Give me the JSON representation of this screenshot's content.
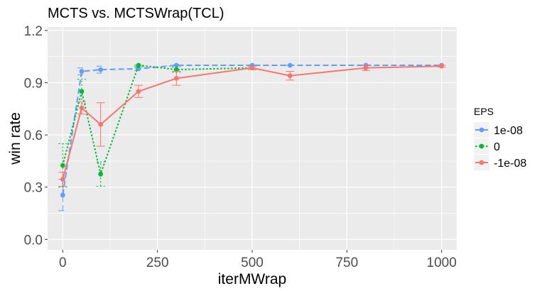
{
  "chart_data": {
    "type": "line",
    "title": "MCTS vs. MCTSWrap(TCL)",
    "xlabel": "iterMWrap",
    "ylabel": "win rate",
    "xlim": [
      -40,
      1040
    ],
    "ylim": [
      -0.06,
      1.22
    ],
    "x_ticks": [
      0,
      250,
      500,
      750,
      1000
    ],
    "y_ticks": [
      0.0,
      0.3,
      0.6,
      0.9,
      1.2
    ],
    "y_tick_labels": [
      "0.0",
      "0.3",
      "0.6",
      "0.9",
      "1.2"
    ],
    "grid": true,
    "legend": {
      "title": "EPS",
      "position": "right"
    },
    "series": [
      {
        "name": "1e-08",
        "color": "#619CFF",
        "dash": "long-dash",
        "x": [
          0,
          50,
          100,
          200,
          300,
          500,
          600,
          800,
          1000
        ],
        "y": [
          0.255,
          0.965,
          0.975,
          0.98,
          1.0,
          1.0,
          1.0,
          1.0,
          1.0
        ],
        "err_low": [
          0.165,
          0.945,
          0.955,
          0.97,
          1.0,
          1.0,
          1.0,
          1.0,
          1.0
        ],
        "err_high": [
          0.345,
          0.985,
          0.995,
          0.99,
          1.0,
          1.0,
          1.0,
          1.0,
          1.0
        ]
      },
      {
        "name": "0",
        "color": "#00BA38",
        "dash": "dotted",
        "x": [
          0,
          50,
          100,
          200,
          300,
          500
        ],
        "y": [
          0.425,
          0.85,
          0.375,
          1.0,
          0.975,
          0.985
        ],
        "err_low": [
          0.3,
          0.78,
          0.305,
          0.99,
          0.96,
          0.975
        ],
        "err_high": [
          0.55,
          0.92,
          0.445,
          1.0,
          0.99,
          0.995
        ]
      },
      {
        "name": "-1e-08",
        "color": "#F8766D",
        "dash": "solid",
        "x": [
          0,
          50,
          100,
          200,
          300,
          500,
          600,
          800,
          1000
        ],
        "y": [
          0.345,
          0.755,
          0.66,
          0.85,
          0.925,
          0.985,
          0.94,
          0.985,
          0.995
        ],
        "err_low": [
          0.305,
          0.72,
          0.535,
          0.815,
          0.885,
          0.975,
          0.915,
          0.97,
          0.99
        ],
        "err_high": [
          0.385,
          0.79,
          0.785,
          0.885,
          0.965,
          0.995,
          0.965,
          1.0,
          1.0
        ]
      }
    ]
  }
}
